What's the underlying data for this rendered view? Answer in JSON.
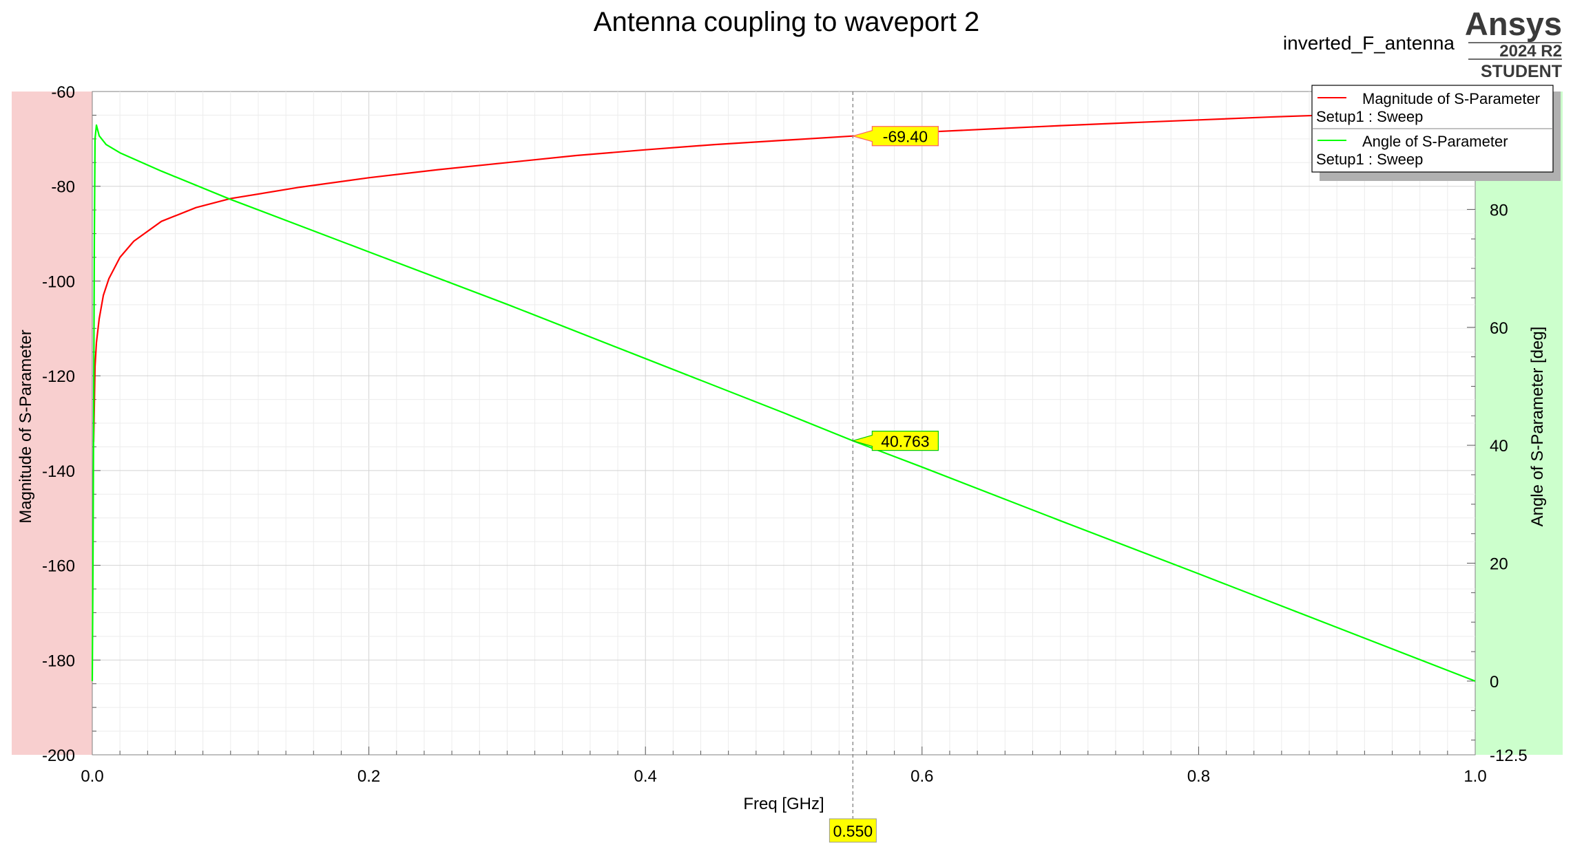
{
  "header": {
    "title": "Antenna coupling to waveport 2",
    "project_name": "inverted_F_antenna",
    "brand": "Ansys",
    "version": "2024 R2",
    "edition": "STUDENT"
  },
  "colors": {
    "magnitude": "#ff0000",
    "angle": "#00ff00",
    "left_axis_band": "#f8cfcf",
    "right_axis_band": "#ccffcc",
    "marker_fill": "#ffff00",
    "grid": "#d3d3d3"
  },
  "chart_data": {
    "type": "line",
    "title": "Antenna coupling to waveport 2",
    "xlabel": "Freq [GHz]",
    "ylabel": "Magnitude of S-Parameter",
    "y2label": "Angle of S-Parameter [deg]",
    "xlim": [
      0.0,
      1.0
    ],
    "ylim": [
      -200,
      -60
    ],
    "y2lim": [
      -12.5,
      100
    ],
    "x_ticks": [
      "0.0",
      "0.2",
      "0.4",
      "0.6",
      "0.8",
      "1.0"
    ],
    "y_ticks": [
      "-60",
      "-80",
      "-100",
      "-120",
      "-140",
      "-160",
      "-180",
      "-200"
    ],
    "y2_ticks": [
      "80",
      "60",
      "40",
      "20",
      "0",
      "-12.5"
    ],
    "grid": true,
    "legend_position": "top-right",
    "series": [
      {
        "name": "Magnitude of S-Parameter",
        "sub_label": "Setup1 : Sweep",
        "axis": "left",
        "color": "#ff0000",
        "x": [
          0.001,
          0.002,
          0.003,
          0.005,
          0.008,
          0.012,
          0.02,
          0.03,
          0.05,
          0.075,
          0.1,
          0.15,
          0.2,
          0.25,
          0.3,
          0.35,
          0.4,
          0.45,
          0.5,
          0.55,
          0.6,
          0.65,
          0.7,
          0.75,
          0.8,
          0.85,
          0.9,
          0.95,
          1.0
        ],
        "y": [
          -134,
          -118,
          -113,
          -108,
          -103,
          -99.5,
          -95,
          -91.6,
          -87.4,
          -84.5,
          -82.6,
          -80.2,
          -78.2,
          -76.5,
          -75.0,
          -73.5,
          -72.3,
          -71.2,
          -70.3,
          -69.4,
          -68.6,
          -67.9,
          -67.2,
          -66.6,
          -66.0,
          -65.4,
          -64.9,
          -64.4,
          -64.0
        ]
      },
      {
        "name": "Angle of S-Parameter",
        "sub_label": "Setup1 : Sweep",
        "axis": "right",
        "color": "#00ff00",
        "x": [
          0.0,
          0.0005,
          0.001,
          0.0015,
          0.002,
          0.003,
          0.005,
          0.01,
          0.02,
          0.05,
          0.1,
          0.2,
          0.3,
          0.4,
          0.5,
          0.55,
          0.6,
          0.7,
          0.8,
          0.9,
          1.0
        ],
        "y": [
          0,
          20,
          45,
          75,
          92,
          94.3,
          92.5,
          91.0,
          89.6,
          86.5,
          81.7,
          72.8,
          63.9,
          54.7,
          45.5,
          40.763,
          36.3,
          27.2,
          18.2,
          9.1,
          0
        ]
      }
    ],
    "markers": [
      {
        "x": 0.55,
        "x_label": "0.550",
        "series": "Magnitude of S-Parameter",
        "value": -69.4,
        "label": "-69.40"
      },
      {
        "x": 0.55,
        "x_label": "0.550",
        "series": "Angle of S-Parameter",
        "value": 40.763,
        "label": "40.763"
      }
    ]
  }
}
